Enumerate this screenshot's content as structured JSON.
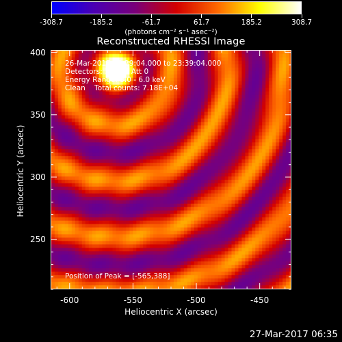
{
  "colorbar": {
    "labels": [
      "-308.7",
      "-185.2",
      "-61.7",
      "61.7",
      "185.2",
      "308.7"
    ],
    "units": "(photons cm⁻² s⁻¹ asec⁻²)",
    "colors": [
      "#0000ff",
      "#4b00b4",
      "#7a007a",
      "#d40000",
      "#ff6a00",
      "#ffff00",
      "#ffffff"
    ]
  },
  "image": {
    "title": "Reconstructed RHESSI Image",
    "info": {
      "line1": "26-Mar-2017 23:29:04.000 to 23:39:04.000",
      "line2": "Detectors: 1F 3F   Att 0",
      "line3": "Energy Range: 3.0 - 6.0 keV",
      "line4": "Clean    Total counts: 7.18E+04"
    },
    "peak": "Position of Peak = [-565,388]",
    "xlabel": "Heliocentric X (arcsec)",
    "ylabel": "Heliocentric Y (arcsec)",
    "xticks": [
      "-600",
      "-550",
      "-500",
      "-450"
    ],
    "yticks": [
      "400",
      "350",
      "300",
      "250"
    ],
    "xrange": [
      -615,
      -425
    ],
    "yrange": [
      210,
      402
    ],
    "peak_x": -565,
    "peak_y": 388
  },
  "footer": {
    "date": "27-Mar-2017 06:35"
  }
}
